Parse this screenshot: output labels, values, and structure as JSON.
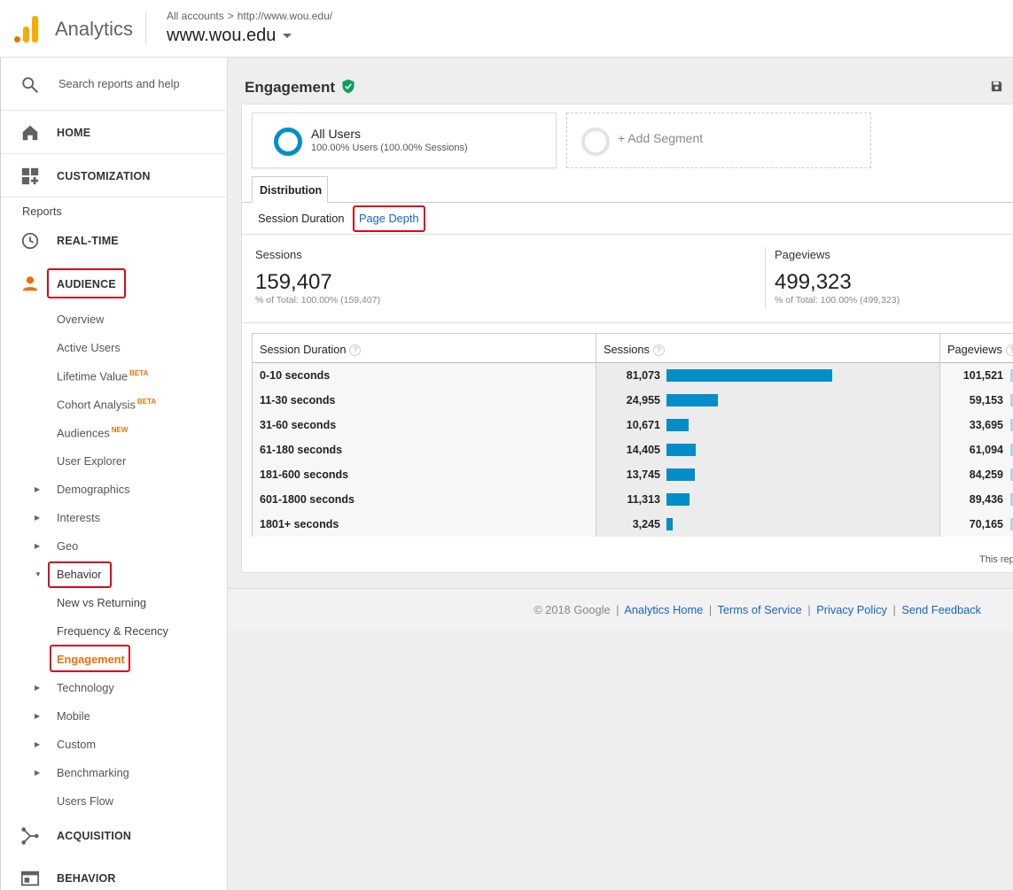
{
  "header": {
    "app_title": "Analytics",
    "breadcrumb_accounts": "All accounts",
    "breadcrumb_sep": ">",
    "breadcrumb_url": "http://www.wou.edu/",
    "property": "www.wou.edu"
  },
  "sidebar": {
    "search_placeholder": "Search reports and help",
    "home": "HOME",
    "customization": "CUSTOMIZATION",
    "reports_header": "Reports",
    "realtime": "REAL-TIME",
    "audience": "AUDIENCE",
    "audience_items": [
      {
        "label": "Overview"
      },
      {
        "label": "Active Users"
      },
      {
        "label": "Lifetime Value",
        "badge": "BETA"
      },
      {
        "label": "Cohort Analysis",
        "badge": "BETA"
      },
      {
        "label": "Audiences",
        "badge": "NEW"
      },
      {
        "label": "User Explorer"
      },
      {
        "label": "Demographics"
      },
      {
        "label": "Interests"
      },
      {
        "label": "Geo"
      },
      {
        "label": "Behavior"
      },
      {
        "label": "New vs Returning"
      },
      {
        "label": "Frequency & Recency"
      },
      {
        "label": "Engagement"
      },
      {
        "label": "Technology"
      },
      {
        "label": "Mobile"
      },
      {
        "label": "Custom"
      },
      {
        "label": "Benchmarking"
      },
      {
        "label": "Users Flow"
      }
    ],
    "acquisition": "ACQUISITION",
    "behavior": "BEHAVIOR"
  },
  "page": {
    "title": "Engagement"
  },
  "segments": {
    "all_users_name": "All Users",
    "all_users_stats": "100.00% Users (100.00% Sessions)",
    "add_segment": "+ Add Segment"
  },
  "tabs": {
    "distribution": "Distribution",
    "session_duration": "Session Duration",
    "page_depth": "Page Depth"
  },
  "metrics": {
    "sessions_label": "Sessions",
    "sessions_value": "159,407",
    "sessions_sub": "% of Total: 100.00% (159,407)",
    "pageviews_label": "Pageviews",
    "pageviews_value": "499,323",
    "pageviews_sub": "% of Total: 100.00% (499,323)"
  },
  "table": {
    "col_dimension": "Session Duration",
    "col_sessions": "Sessions",
    "col_pageviews": "Pageviews",
    "help_glyph": "?",
    "rows": [
      {
        "duration": "0-10 seconds",
        "sessions": "81,073",
        "sessions_num": 81073,
        "pageviews": "101,521"
      },
      {
        "duration": "11-30 seconds",
        "sessions": "24,955",
        "sessions_num": 24955,
        "pageviews": "59,153"
      },
      {
        "duration": "31-60 seconds",
        "sessions": "10,671",
        "sessions_num": 10671,
        "pageviews": "33,695"
      },
      {
        "duration": "61-180 seconds",
        "sessions": "14,405",
        "sessions_num": 14405,
        "pageviews": "61,094"
      },
      {
        "duration": "181-600 seconds",
        "sessions": "13,745",
        "sessions_num": 13745,
        "pageviews": "84,259"
      },
      {
        "duration": "601-1800 seconds",
        "sessions": "11,313",
        "sessions_num": 11313,
        "pageviews": "89,436"
      },
      {
        "duration": "1801+ seconds",
        "sessions": "3,245",
        "sessions_num": 3245,
        "pageviews": "70,165"
      }
    ],
    "note": "This rep"
  },
  "footer": {
    "copyright": "© 2018 Google",
    "links": [
      "Analytics Home",
      "Terms of Service",
      "Privacy Policy",
      "Send Feedback"
    ],
    "separator": "|"
  },
  "colors": {
    "accent_blue": "#058dc7",
    "highlight_red": "#d30b1e",
    "active_orange": "#e8710a"
  }
}
